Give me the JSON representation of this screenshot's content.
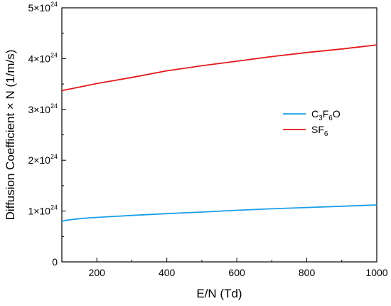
{
  "chart_data": {
    "type": "line",
    "xlabel": "E/N (Td)",
    "ylabel": "Diffusion Coefficient × N (1/m/s)",
    "xlim": [
      100,
      1000
    ],
    "ylim": [
      0,
      5e+24
    ],
    "x_ticks": [
      {
        "value": 200,
        "label": "200"
      },
      {
        "value": 400,
        "label": "400"
      },
      {
        "value": 600,
        "label": "600"
      },
      {
        "value": 800,
        "label": "800"
      },
      {
        "value": 1000,
        "label": "1000"
      }
    ],
    "y_ticks": [
      {
        "value": 0,
        "label": "0"
      },
      {
        "value": 1e+24,
        "mantissa": "1",
        "base": "×10",
        "exponent": "24"
      },
      {
        "value": 2e+24,
        "mantissa": "2",
        "base": "×10",
        "exponent": "24"
      },
      {
        "value": 3e+24,
        "mantissa": "3",
        "base": "×10",
        "exponent": "24"
      },
      {
        "value": 4e+24,
        "mantissa": "4",
        "base": "×10",
        "exponent": "24"
      },
      {
        "value": 5e+24,
        "mantissa": "5",
        "base": "×10",
        "exponent": "24"
      }
    ],
    "grid": false,
    "legend_position": "right-middle",
    "series": [
      {
        "name": "C3F6O",
        "legend_parts": [
          {
            "text": "C",
            "sub": "3"
          },
          {
            "text": "F",
            "sub": "6"
          },
          {
            "text": "O",
            "sub": ""
          }
        ],
        "color": "#1a9ee8",
        "x": [
          100,
          110,
          125,
          150,
          175,
          200,
          250,
          300,
          400,
          500,
          600,
          700,
          800,
          900,
          1000
        ],
        "y": [
          8e+23,
          8.15e+23,
          8.3e+23,
          8.5e+23,
          8.65e+23,
          8.75e+23,
          8.95e+23,
          9.15e+23,
          9.5e+23,
          9.8e+23,
          1.015e+24,
          1.045e+24,
          1.07e+24,
          1.095e+24,
          1.12e+24
        ]
      },
      {
        "name": "SF6",
        "legend_parts": [
          {
            "text": "SF",
            "sub": "6"
          }
        ],
        "color": "#e31a1c",
        "x": [
          100,
          150,
          200,
          250,
          300,
          400,
          500,
          600,
          700,
          800,
          900,
          1000
        ],
        "y": [
          3.37e+24,
          3.44e+24,
          3.51e+24,
          3.57e+24,
          3.63e+24,
          3.76e+24,
          3.86e+24,
          3.95e+24,
          4.04e+24,
          4.12e+24,
          4.19e+24,
          4.27e+24
        ]
      }
    ]
  }
}
